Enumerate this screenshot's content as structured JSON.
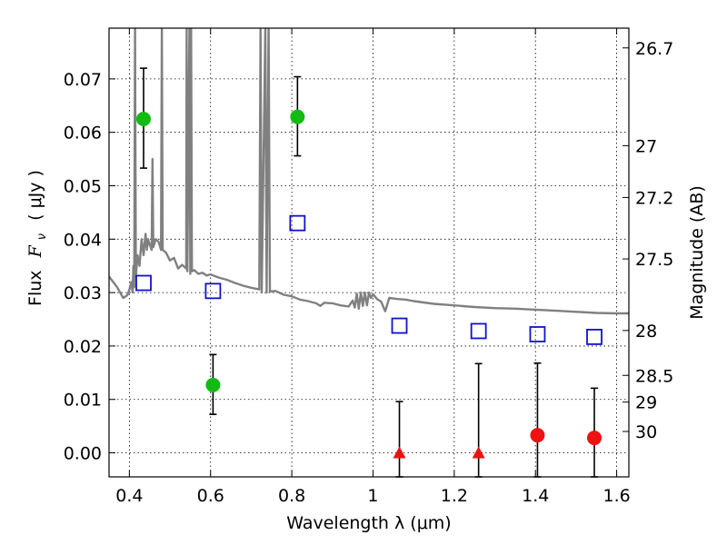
{
  "chart_data": {
    "type": "scatter",
    "xlabel": "Wavelength  λ (μm)",
    "ylabel_prefix": "Flux",
    "ylabel_symbol": "F",
    "ylabel_subscript": "ν",
    "ylabel_unit": "( μJy )",
    "ylabel_right": "Magnitude (AB)",
    "xlim": [
      0.35,
      1.63
    ],
    "ylim": [
      -0.0045,
      0.0795
    ],
    "grid": true,
    "grid_style": "dotted",
    "x_ticks": [
      {
        "value": 0.4,
        "label": "0.4"
      },
      {
        "value": 0.6,
        "label": "0.6"
      },
      {
        "value": 0.8,
        "label": "0.8"
      },
      {
        "value": 1.0,
        "label": "1"
      },
      {
        "value": 1.2,
        "label": "1.2"
      },
      {
        "value": 1.4,
        "label": "1.4"
      },
      {
        "value": 1.6,
        "label": "1.6"
      }
    ],
    "y_ticks": [
      {
        "value": 0.0,
        "label": "0.00"
      },
      {
        "value": 0.01,
        "label": "0.01"
      },
      {
        "value": 0.02,
        "label": "0.02"
      },
      {
        "value": 0.03,
        "label": "0.03"
      },
      {
        "value": 0.04,
        "label": "0.04"
      },
      {
        "value": 0.05,
        "label": "0.05"
      },
      {
        "value": 0.06,
        "label": "0.06"
      },
      {
        "value": 0.07,
        "label": "0.07"
      }
    ],
    "mag_ticks": [
      {
        "flux": 0.0758,
        "label": "26.7"
      },
      {
        "flux": 0.0575,
        "label": "27"
      },
      {
        "flux": 0.0478,
        "label": "27.2"
      },
      {
        "flux": 0.0363,
        "label": "27.5"
      },
      {
        "flux": 0.0229,
        "label": "28"
      },
      {
        "flux": 0.0145,
        "label": "28.5"
      },
      {
        "flux": 0.0095,
        "label": "29"
      },
      {
        "flux": 0.004,
        "label": "30"
      }
    ],
    "colors": {
      "detection": "#11bb11",
      "upper_limit": "#ee1111",
      "model": "#1111cc",
      "sed": "#808080",
      "errorbar": "#000000"
    },
    "series": [
      {
        "marker": "circle",
        "color": "#11bb11",
        "points": [
          {
            "x": 0.435,
            "y": 0.0625,
            "err_lo": 0.0092,
            "err_hi": 0.0095
          },
          {
            "x": 0.606,
            "y": 0.0127,
            "err_lo": 0.0055,
            "err_hi": 0.0057
          },
          {
            "x": 0.814,
            "y": 0.0629,
            "err_lo": 0.0073,
            "err_hi": 0.0075
          }
        ]
      },
      {
        "marker": "triangle",
        "color": "#ee1111",
        "points": [
          {
            "x": 1.065,
            "y": 0.0,
            "err_lo": 0.0045,
            "err_hi": 0.0096
          },
          {
            "x": 1.26,
            "y": 0.0,
            "err_lo": 0.0045,
            "err_hi": 0.0167
          }
        ]
      },
      {
        "marker": "circle",
        "color": "#ee1111",
        "points": [
          {
            "x": 1.405,
            "y": 0.0033,
            "err_lo": 0.0078,
            "err_hi": 0.0135
          },
          {
            "x": 1.545,
            "y": 0.0028,
            "err_lo": 0.0073,
            "err_hi": 0.0093
          }
        ]
      },
      {
        "marker": "square",
        "color": "#1111cc",
        "points": [
          {
            "x": 0.435,
            "y": 0.0318
          },
          {
            "x": 0.606,
            "y": 0.0303
          },
          {
            "x": 0.814,
            "y": 0.043
          },
          {
            "x": 1.065,
            "y": 0.0238
          },
          {
            "x": 1.26,
            "y": 0.0228
          },
          {
            "x": 1.405,
            "y": 0.0222
          },
          {
            "x": 1.545,
            "y": 0.0217
          }
        ]
      }
    ],
    "sed": {
      "color": "#808080",
      "points": [
        [
          0.35,
          0.033
        ],
        [
          0.37,
          0.031
        ],
        [
          0.385,
          0.029
        ],
        [
          0.395,
          0.0295
        ],
        [
          0.4,
          0.0305
        ],
        [
          0.405,
          0.032
        ],
        [
          0.408,
          0.03
        ],
        [
          0.41,
          0.035
        ],
        [
          0.412,
          0.031
        ],
        [
          0.414,
          0.08
        ],
        [
          0.416,
          0.033
        ],
        [
          0.42,
          0.037
        ],
        [
          0.425,
          0.035
        ],
        [
          0.43,
          0.04
        ],
        [
          0.435,
          0.037
        ],
        [
          0.44,
          0.041
        ],
        [
          0.443,
          0.038
        ],
        [
          0.446,
          0.04
        ],
        [
          0.45,
          0.039
        ],
        [
          0.455,
          0.038
        ],
        [
          0.457,
          0.055
        ],
        [
          0.459,
          0.0385
        ],
        [
          0.465,
          0.04
        ],
        [
          0.472,
          0.0395
        ],
        [
          0.478,
          0.038
        ],
        [
          0.48,
          0.08
        ],
        [
          0.482,
          0.038
        ],
        [
          0.49,
          0.0375
        ],
        [
          0.5,
          0.036
        ],
        [
          0.51,
          0.0365
        ],
        [
          0.52,
          0.0345
        ],
        [
          0.53,
          0.0352
        ],
        [
          0.54,
          0.0345
        ],
        [
          0.541,
          0.08
        ],
        [
          0.543,
          0.034
        ],
        [
          0.548,
          0.08
        ],
        [
          0.55,
          0.0335
        ],
        [
          0.552,
          0.08
        ],
        [
          0.554,
          0.034
        ],
        [
          0.56,
          0.0342
        ],
        [
          0.57,
          0.0335
        ],
        [
          0.58,
          0.0337
        ],
        [
          0.59,
          0.0332
        ],
        [
          0.6,
          0.0334
        ],
        [
          0.62,
          0.0328
        ],
        [
          0.64,
          0.0324
        ],
        [
          0.66,
          0.0318
        ],
        [
          0.68,
          0.0313
        ],
        [
          0.7,
          0.0309
        ],
        [
          0.72,
          0.0306
        ],
        [
          0.723,
          0.08
        ],
        [
          0.726,
          0.03
        ],
        [
          0.735,
          0.08
        ],
        [
          0.738,
          0.03
        ],
        [
          0.743,
          0.08
        ],
        [
          0.746,
          0.0302
        ],
        [
          0.76,
          0.0303
        ],
        [
          0.78,
          0.0296
        ],
        [
          0.8,
          0.0293
        ],
        [
          0.82,
          0.0287
        ],
        [
          0.84,
          0.0284
        ],
        [
          0.86,
          0.028
        ],
        [
          0.87,
          0.0275
        ],
        [
          0.88,
          0.0281
        ],
        [
          0.9,
          0.028
        ],
        [
          0.92,
          0.0276
        ],
        [
          0.94,
          0.0274
        ],
        [
          0.95,
          0.0285
        ],
        [
          0.955,
          0.0272
        ],
        [
          0.96,
          0.0298
        ],
        [
          0.965,
          0.027
        ],
        [
          0.97,
          0.03
        ],
        [
          0.975,
          0.0275
        ],
        [
          0.98,
          0.03
        ],
        [
          0.985,
          0.0276
        ],
        [
          0.99,
          0.03
        ],
        [
          0.995,
          0.029
        ],
        [
          1.0,
          0.0297
        ],
        [
          1.01,
          0.0288
        ],
        [
          1.02,
          0.0283
        ],
        [
          1.03,
          0.0265
        ],
        [
          1.04,
          0.029
        ],
        [
          1.06,
          0.0288
        ],
        [
          1.08,
          0.0287
        ],
        [
          1.1,
          0.0284
        ],
        [
          1.15,
          0.0279
        ],
        [
          1.2,
          0.0276
        ],
        [
          1.25,
          0.0273
        ],
        [
          1.3,
          0.0271
        ],
        [
          1.35,
          0.027
        ],
        [
          1.4,
          0.0268
        ],
        [
          1.45,
          0.0266
        ],
        [
          1.5,
          0.0264
        ],
        [
          1.55,
          0.0262
        ],
        [
          1.6,
          0.0261
        ],
        [
          1.63,
          0.0261
        ]
      ]
    }
  }
}
